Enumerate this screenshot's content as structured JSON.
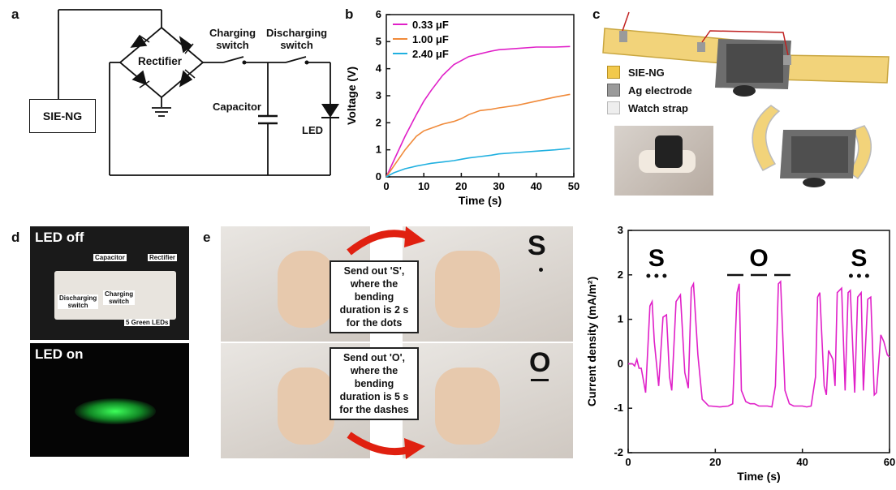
{
  "panels": {
    "a": "a",
    "b": "b",
    "c": "c",
    "d": "d",
    "e": "e"
  },
  "circuit": {
    "source": "SIE-NG",
    "rectifier": "Rectifier",
    "charging_switch": [
      "Charging",
      "switch"
    ],
    "discharging_switch": [
      "Discharging",
      "switch"
    ],
    "capacitor": "Capacitor",
    "led": "LED"
  },
  "structure": {
    "legend": [
      {
        "label": "SIE-NG",
        "color": "#f2c94c"
      },
      {
        "label": "Ag electrode",
        "color": "#9a9a9a"
      },
      {
        "label": "Watch strap",
        "color": "#e6e6e6"
      }
    ]
  },
  "photo_d": {
    "top_title": "LED off",
    "bottom_title": "LED on",
    "labels": [
      "Capacitor",
      "Rectifier",
      "Discharging",
      "switch",
      "Charging",
      "switch",
      "5 Green LEDs"
    ]
  },
  "panel_e": {
    "box1": [
      "Send out 'S',",
      "where the",
      "bending",
      "duration is 2 s",
      "for the dots"
    ],
    "box2": [
      "Send out 'O',",
      "where the",
      "bending",
      "duration is 5 s",
      "for the dashes"
    ],
    "letter1": "S",
    "letter2": "O"
  },
  "chart_data": [
    {
      "type": "line",
      "xlabel": "Time (s)",
      "ylabel": "Voltage (V)",
      "xlim": [
        0,
        50
      ],
      "ylim": [
        0,
        6
      ],
      "xticks": [
        0,
        10,
        20,
        30,
        40,
        50
      ],
      "yticks": [
        0,
        1,
        2,
        3,
        4,
        5,
        6
      ],
      "legend_position": "top-left",
      "series": [
        {
          "name": "0.33 μF",
          "color": "#e020c8",
          "x": [
            0,
            2,
            5,
            8,
            10,
            12,
            15,
            18,
            20,
            22,
            25,
            28,
            30,
            35,
            40,
            45,
            49
          ],
          "y": [
            0,
            0.6,
            1.5,
            2.3,
            2.8,
            3.2,
            3.75,
            4.15,
            4.3,
            4.45,
            4.55,
            4.65,
            4.7,
            4.75,
            4.8,
            4.8,
            4.82
          ]
        },
        {
          "name": "1.00 μF",
          "color": "#f08a3a",
          "x": [
            0,
            2,
            5,
            8,
            10,
            12,
            15,
            18,
            20,
            22,
            25,
            28,
            30,
            35,
            40,
            45,
            49
          ],
          "y": [
            0,
            0.4,
            1.0,
            1.5,
            1.7,
            1.8,
            1.95,
            2.05,
            2.15,
            2.3,
            2.45,
            2.5,
            2.55,
            2.65,
            2.8,
            2.95,
            3.05
          ]
        },
        {
          "name": "2.40 μF",
          "color": "#20b0e0",
          "x": [
            0,
            2,
            5,
            8,
            10,
            12,
            15,
            18,
            20,
            22,
            25,
            28,
            30,
            35,
            40,
            45,
            49
          ],
          "y": [
            0,
            0.15,
            0.3,
            0.4,
            0.45,
            0.5,
            0.55,
            0.6,
            0.65,
            0.7,
            0.75,
            0.8,
            0.85,
            0.9,
            0.95,
            1.0,
            1.05
          ]
        }
      ]
    },
    {
      "type": "line",
      "xlabel": "Time (s)",
      "ylabel": "Current density (mA/m²)",
      "xlim": [
        0,
        60
      ],
      "ylim": [
        -2,
        3
      ],
      "xticks": [
        0,
        20,
        40,
        60
      ],
      "yticks": [
        -2,
        -1,
        0,
        1,
        2,
        3
      ],
      "annotations": [
        {
          "text": "S",
          "x": 6.5,
          "code": "dots"
        },
        {
          "text": "O",
          "x": 30,
          "code": "dashes"
        },
        {
          "text": "S",
          "x": 53,
          "code": "dots"
        }
      ],
      "series": [
        {
          "color": "#e020c8",
          "x": [
            0,
            1,
            1.5,
            2,
            2.5,
            3,
            4,
            5,
            5.5,
            6,
            7,
            8,
            8.8,
            9.5,
            10,
            11,
            12,
            13,
            13.8,
            14.5,
            15,
            16,
            17,
            18,
            18.5,
            19,
            21,
            23,
            24,
            25,
            25.5,
            26,
            27,
            28,
            29,
            30,
            32,
            33,
            33.8,
            34.5,
            35,
            36,
            37,
            38,
            40,
            41,
            42,
            43,
            43.5,
            44,
            45,
            45.5,
            46,
            47,
            47.5,
            48,
            49,
            49.8,
            50.5,
            51,
            52,
            52.7,
            53.5,
            54,
            55,
            55.7,
            56.5,
            57,
            58,
            58.7,
            59.5,
            60
          ],
          "y": [
            0,
            0,
            -0.05,
            0.1,
            -0.1,
            -0.1,
            -0.65,
            1.3,
            1.4,
            0.5,
            -0.5,
            1.05,
            1.1,
            -0.3,
            -0.6,
            1.4,
            1.55,
            -0.2,
            -0.55,
            1.7,
            1.8,
            0.2,
            -0.8,
            -0.9,
            -0.95,
            -0.95,
            -0.97,
            -0.95,
            -0.9,
            1.6,
            1.8,
            -0.6,
            -0.85,
            -0.9,
            -0.9,
            -0.95,
            -0.95,
            -0.97,
            -0.5,
            1.8,
            1.85,
            -0.6,
            -0.9,
            -0.95,
            -0.95,
            -0.97,
            -0.95,
            -0.3,
            1.5,
            1.6,
            -0.5,
            -0.7,
            0.3,
            0.1,
            -0.5,
            1.6,
            1.7,
            -0.6,
            1.6,
            1.65,
            -0.65,
            1.5,
            1.6,
            -0.6,
            1.45,
            1.5,
            -0.7,
            -0.65,
            0.65,
            0.5,
            0.2,
            0.15
          ]
        }
      ]
    }
  ]
}
